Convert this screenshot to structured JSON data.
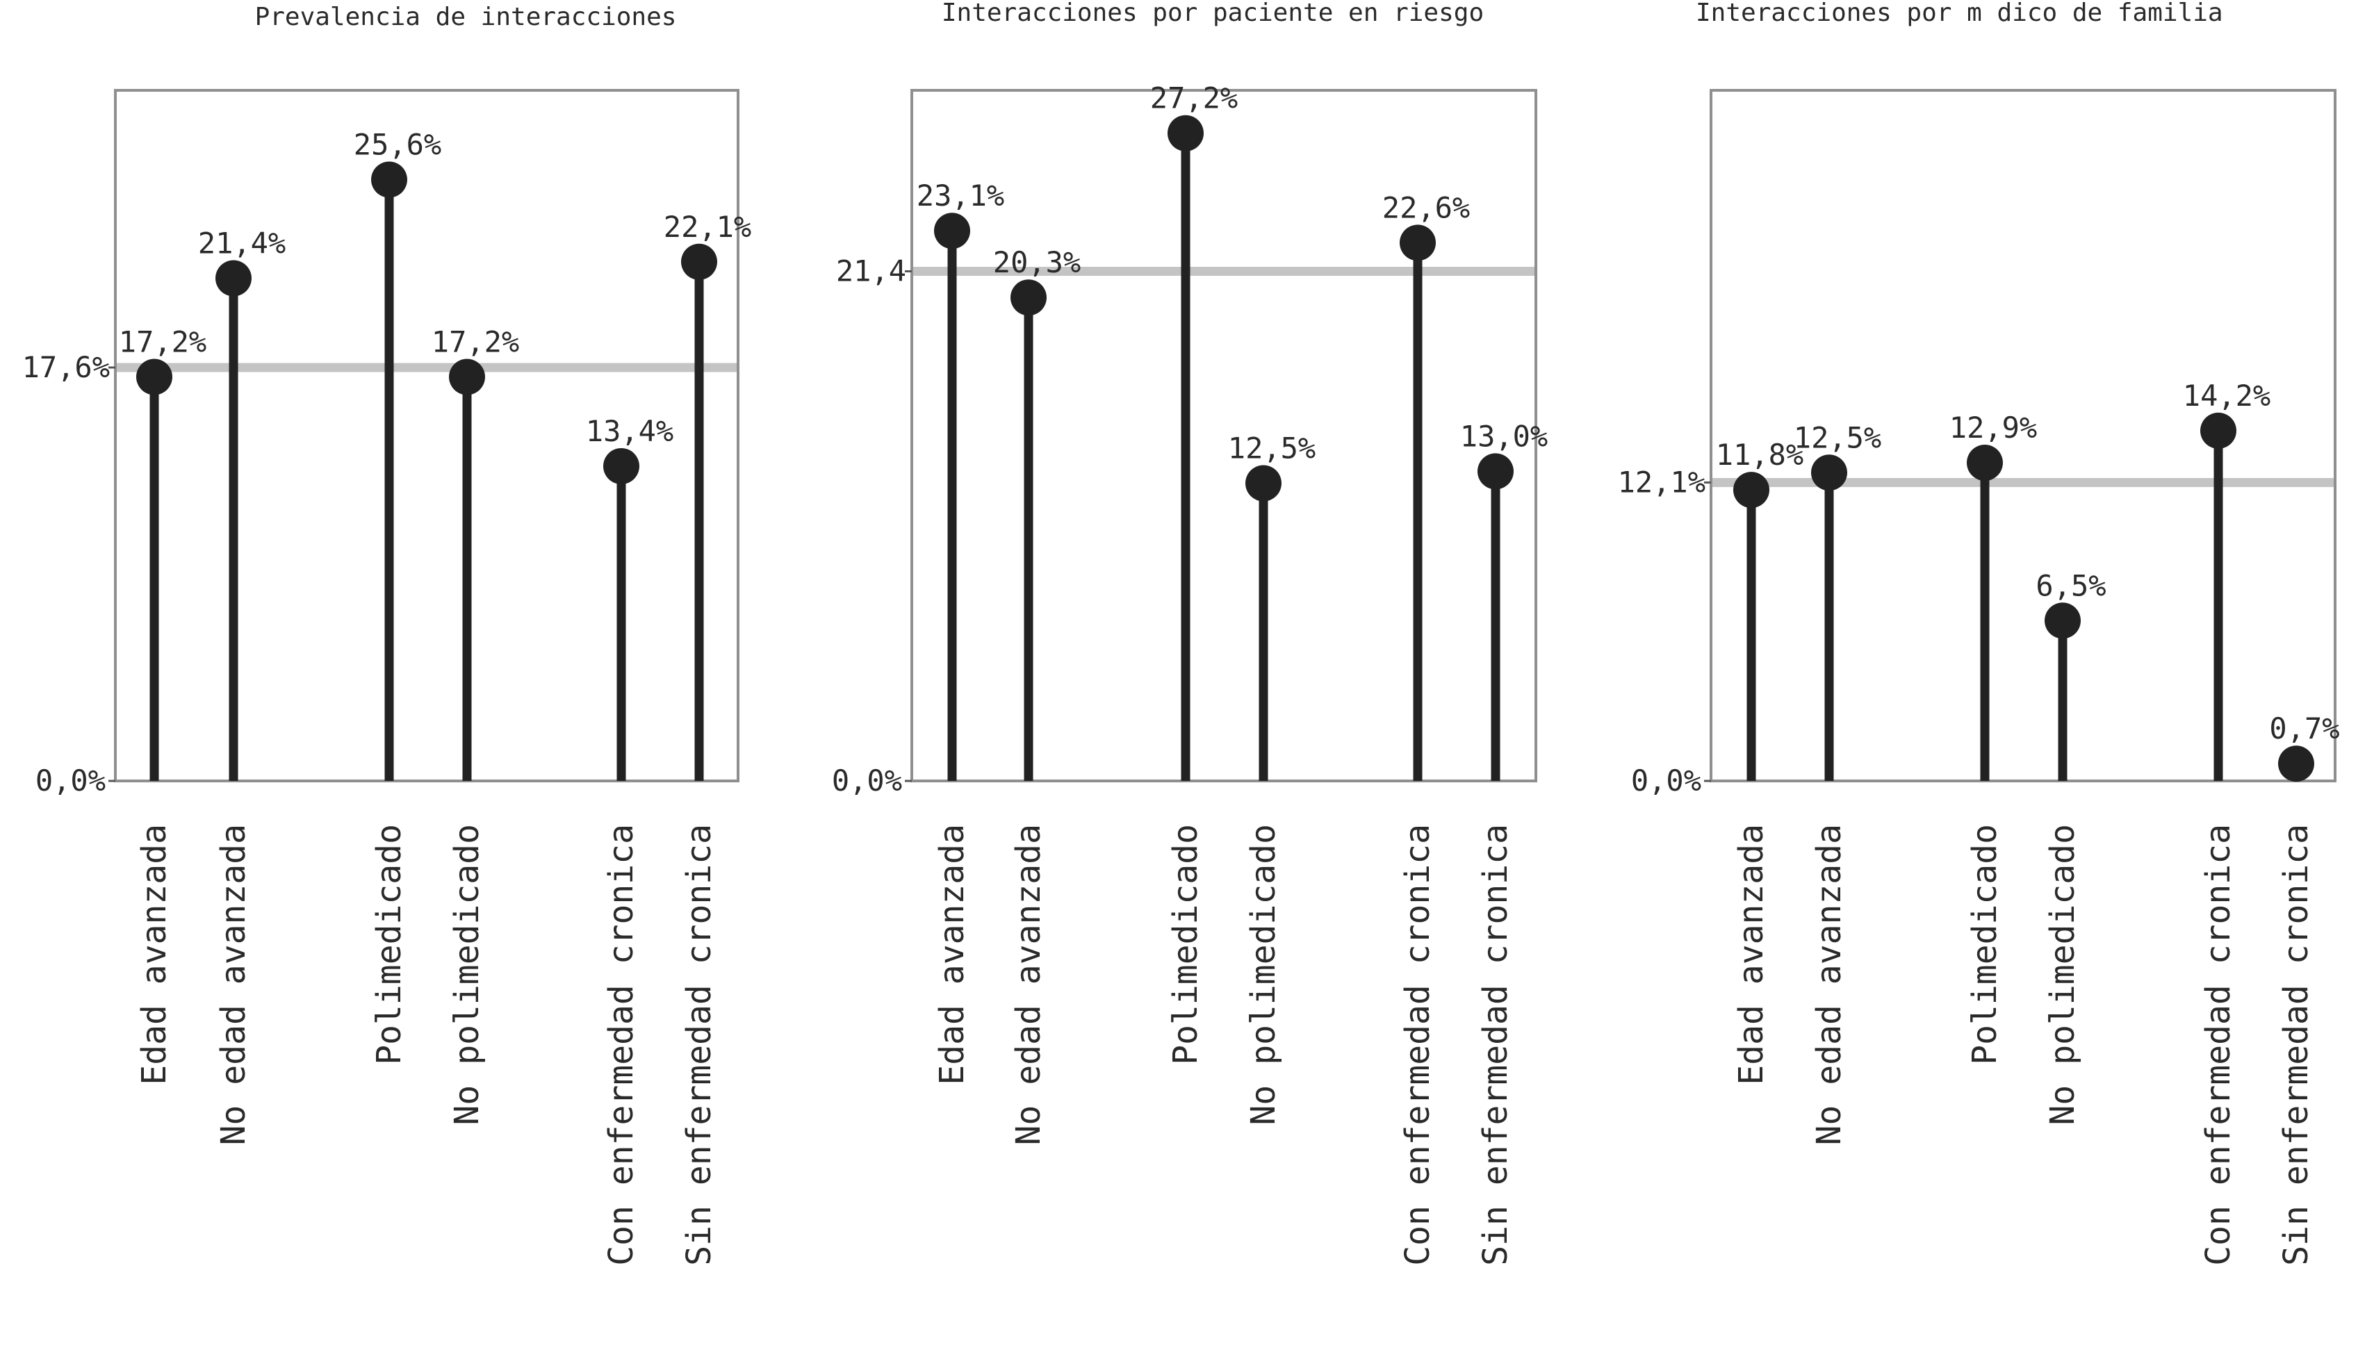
{
  "chart_data": [
    {
      "type": "lollipop",
      "title": "Prevalencia de interacciones",
      "categories": [
        "Edad avanzada",
        "No edad avanzada",
        "Polimedicado",
        "No polimedicado",
        "Con enfermedad cronica",
        "Sin enfermedad cronica"
      ],
      "values": [
        17.2,
        21.4,
        25.6,
        17.2,
        13.4,
        22.1
      ],
      "value_labels": [
        "17,2%",
        "21,4%",
        "25,6%",
        "17,2%",
        "13,4%",
        "22,1%"
      ],
      "reference": {
        "value": 17.6,
        "label": "17,6%"
      },
      "zero_label": "0,0%",
      "ylim": [
        0,
        29.4
      ],
      "grid": false
    },
    {
      "type": "lollipop",
      "title": "Interacciones por paciente en riesgo",
      "categories": [
        "Edad avanzada",
        "No edad avanzada",
        "Polimedicado",
        "No polimedicado",
        "Con enfermedad cronica",
        "Sin enfermedad cronica"
      ],
      "values": [
        23.1,
        20.3,
        27.2,
        12.5,
        22.6,
        13.0
      ],
      "value_labels": [
        "23,1%",
        "20,3%",
        "27,2%",
        "12,5%",
        "22,6%",
        "13,0%"
      ],
      "reference": {
        "value": 21.4,
        "label": "21,4"
      },
      "zero_label": "0,0%",
      "ylim": [
        0,
        29.0
      ],
      "grid": false
    },
    {
      "type": "lollipop",
      "title": "Interacciones por m  dico de familia",
      "categories": [
        "Edad avanzada",
        "No edad avanzada",
        "Polimedicado",
        "No polimedicado",
        "Con enfermedad cronica",
        "Sin enfermedad cronica"
      ],
      "values": [
        11.8,
        12.5,
        12.9,
        6.5,
        14.2,
        0.7
      ],
      "value_labels": [
        "11,8%",
        "12,5%",
        "12,9%",
        "6,5%",
        "14,2%",
        "0,7%"
      ],
      "reference": {
        "value": 12.1,
        "label": "12,1%"
      },
      "zero_label": "0,0%",
      "ylim": [
        0,
        28.0
      ],
      "grid": false
    }
  ]
}
